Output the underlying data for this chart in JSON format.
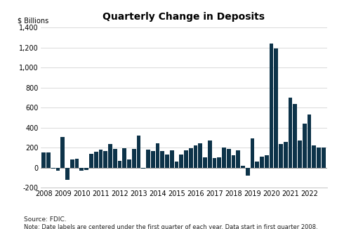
{
  "title": "Quarterly Change in Deposits",
  "ylabel": "$ Billions",
  "source_text": "Source: FDIC.",
  "note_text": "Note: Date labels are centered under the first quarter of each year. Data start in first quarter 2008.",
  "bar_color": "#0d3349",
  "background_color": "#ffffff",
  "ylim": [
    -200,
    1400
  ],
  "yticks": [
    -200,
    0,
    200,
    400,
    600,
    800,
    1000,
    1200,
    1400
  ],
  "year_labels": [
    2008,
    2009,
    2010,
    2011,
    2012,
    2013,
    2014,
    2015,
    2016,
    2017,
    2018,
    2019,
    2020,
    2021,
    2022
  ],
  "values": [
    150,
    150,
    -5,
    -30,
    310,
    -120,
    80,
    90,
    -30,
    -20,
    140,
    160,
    180,
    170,
    240,
    185,
    70,
    195,
    80,
    185,
    320,
    -10,
    180,
    165,
    245,
    165,
    130,
    175,
    60,
    130,
    175,
    195,
    225,
    245,
    105,
    275,
    100,
    105,
    200,
    190,
    125,
    175,
    20,
    -80,
    290,
    60,
    110,
    125,
    1240,
    1190,
    235,
    255,
    700,
    640,
    270,
    440,
    530,
    225,
    200,
    200
  ]
}
